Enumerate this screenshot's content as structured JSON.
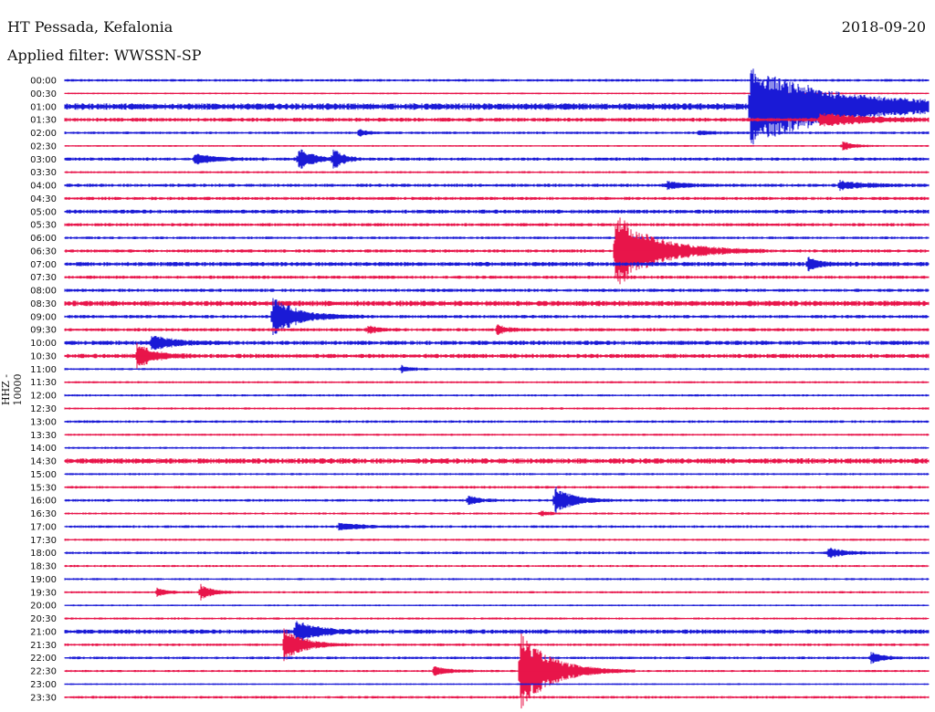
{
  "header": {
    "station": "HT Pessada, Kefalonia",
    "date": "2018-09-20",
    "filter_label": "Applied filter: WWSSN-SP"
  },
  "chart_data": {
    "type": "line",
    "title": "HT Pessada, Kefalonia",
    "subtitle": "Applied filter: WWSSN-SP",
    "ylabel": "HHZ - 10000",
    "xlabel": "",
    "grid": false,
    "colors": {
      "even_rows": "#1a1ad6",
      "odd_rows": "#e8154a"
    },
    "rows": [
      "00:00",
      "00:30",
      "01:00",
      "01:30",
      "02:00",
      "02:30",
      "03:00",
      "03:30",
      "04:00",
      "04:30",
      "05:00",
      "05:30",
      "06:00",
      "06:30",
      "07:00",
      "07:30",
      "08:00",
      "08:30",
      "09:00",
      "09:30",
      "10:00",
      "10:30",
      "11:00",
      "11:30",
      "12:00",
      "12:30",
      "13:00",
      "13:30",
      "14:00",
      "14:30",
      "15:00",
      "15:30",
      "16:00",
      "16:30",
      "17:00",
      "17:30",
      "18:00",
      "18:30",
      "19:00",
      "19:30",
      "20:00",
      "20:30",
      "21:00",
      "21:30",
      "22:00",
      "22:30",
      "23:00",
      "23:30"
    ],
    "row_duration_minutes": 30,
    "noise_amplitude": [
      1.2,
      0.8,
      3.0,
      1.8,
      1.2,
      0.8,
      1.5,
      1.0,
      1.5,
      1.5,
      1.8,
      1.5,
      1.2,
      1.5,
      2.0,
      1.5,
      1.5,
      2.5,
      1.5,
      1.5,
      2.0,
      2.0,
      1.0,
      1.0,
      1.0,
      1.0,
      1.2,
      1.0,
      1.0,
      2.5,
      1.0,
      1.2,
      1.2,
      1.0,
      1.2,
      1.0,
      1.2,
      1.0,
      1.0,
      1.0,
      0.8,
      1.0,
      2.0,
      1.2,
      1.2,
      1.0,
      0.8,
      1.2
    ],
    "events": [
      {
        "row": 2,
        "minute": 23.8,
        "amplitude": 40,
        "duration_min": 3.0
      },
      {
        "row": 3,
        "minute": 26.2,
        "amplitude": 7,
        "duration_min": 1.5
      },
      {
        "row": 4,
        "minute": 10.2,
        "amplitude": 4,
        "duration_min": 0.3
      },
      {
        "row": 4,
        "minute": 22.0,
        "amplitude": 2,
        "duration_min": 0.5
      },
      {
        "row": 5,
        "minute": 27.0,
        "amplitude": 5,
        "duration_min": 0.4
      },
      {
        "row": 6,
        "minute": 4.5,
        "amplitude": 6,
        "duration_min": 0.6
      },
      {
        "row": 6,
        "minute": 8.1,
        "amplitude": 13,
        "duration_min": 0.5
      },
      {
        "row": 6,
        "minute": 9.3,
        "amplitude": 13,
        "duration_min": 0.3
      },
      {
        "row": 8,
        "minute": 20.9,
        "amplitude": 4,
        "duration_min": 0.6
      },
      {
        "row": 8,
        "minute": 26.9,
        "amplitude": 5,
        "duration_min": 0.8
      },
      {
        "row": 13,
        "minute": 19.1,
        "amplitude": 42,
        "duration_min": 1.3
      },
      {
        "row": 14,
        "minute": 25.8,
        "amplitude": 7,
        "duration_min": 0.4
      },
      {
        "row": 18,
        "minute": 7.2,
        "amplitude": 22,
        "duration_min": 0.8
      },
      {
        "row": 19,
        "minute": 10.5,
        "amplitude": 5,
        "duration_min": 0.3
      },
      {
        "row": 19,
        "minute": 15.0,
        "amplitude": 6,
        "duration_min": 0.3
      },
      {
        "row": 20,
        "minute": 3.0,
        "amplitude": 8,
        "duration_min": 0.7
      },
      {
        "row": 21,
        "minute": 2.5,
        "amplitude": 14,
        "duration_min": 0.5
      },
      {
        "row": 22,
        "minute": 11.7,
        "amplitude": 4,
        "duration_min": 0.3
      },
      {
        "row": 32,
        "minute": 17.0,
        "amplitude": 16,
        "duration_min": 0.6
      },
      {
        "row": 32,
        "minute": 14.0,
        "amplitude": 5,
        "duration_min": 0.4
      },
      {
        "row": 33,
        "minute": 16.5,
        "amplitude": 3,
        "duration_min": 0.3
      },
      {
        "row": 34,
        "minute": 9.5,
        "amplitude": 4,
        "duration_min": 0.8
      },
      {
        "row": 36,
        "minute": 26.5,
        "amplitude": 6,
        "duration_min": 0.5
      },
      {
        "row": 39,
        "minute": 3.2,
        "amplitude": 5,
        "duration_min": 0.3
      },
      {
        "row": 39,
        "minute": 4.7,
        "amplitude": 9,
        "duration_min": 0.4
      },
      {
        "row": 42,
        "minute": 8.0,
        "amplitude": 12,
        "duration_min": 0.7
      },
      {
        "row": 43,
        "minute": 7.6,
        "amplitude": 20,
        "duration_min": 0.6
      },
      {
        "row": 44,
        "minute": 28.0,
        "amplitude": 6,
        "duration_min": 0.4
      },
      {
        "row": 45,
        "minute": 12.8,
        "amplitude": 5,
        "duration_min": 0.6
      },
      {
        "row": 45,
        "minute": 15.8,
        "amplitude": 44,
        "duration_min": 1.0
      }
    ]
  }
}
